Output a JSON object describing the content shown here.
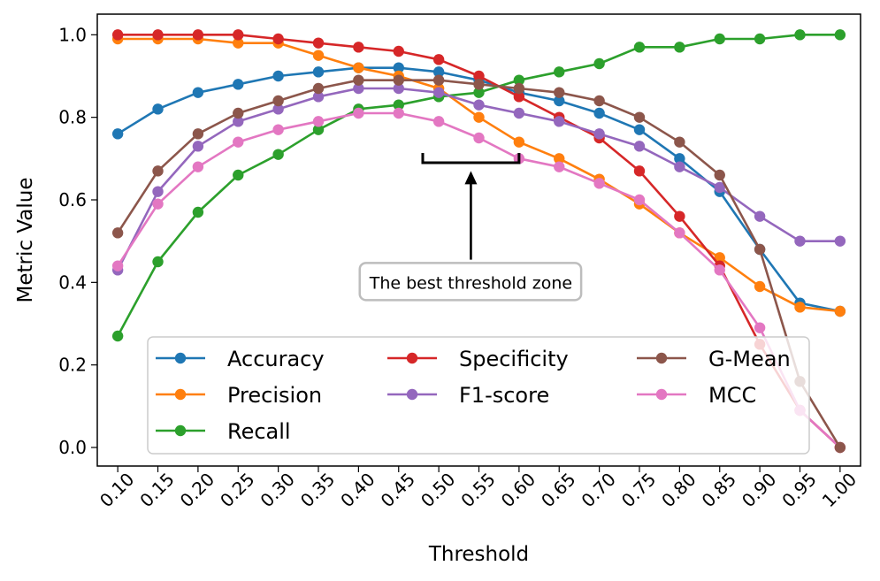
{
  "chart_data": {
    "type": "line",
    "title": "",
    "xlabel": "Threshold",
    "ylabel": "Metric Value",
    "xlim": [
      0.0745,
      1.0255
    ],
    "ylim": [
      -0.045,
      1.05
    ],
    "x_tick_labels": [
      "0.10",
      "0.15",
      "0.20",
      "0.25",
      "0.30",
      "0.35",
      "0.40",
      "0.45",
      "0.50",
      "0.55",
      "0.60",
      "0.65",
      "0.70",
      "0.75",
      "0.80",
      "0.85",
      "0.90",
      "0.95",
      "1.00"
    ],
    "y_tick_labels": [
      "0.0",
      "0.2",
      "0.4",
      "0.6",
      "0.8",
      "1.0"
    ],
    "x": [
      0.1,
      0.15,
      0.2,
      0.25,
      0.3,
      0.35,
      0.4,
      0.45,
      0.5,
      0.55,
      0.6,
      0.65,
      0.7,
      0.75,
      0.8,
      0.85,
      0.9,
      0.95,
      1.0
    ],
    "series": [
      {
        "name": "Accuracy",
        "color": "#1f77b4",
        "values": [
          0.76,
          0.82,
          0.86,
          0.88,
          0.9,
          0.91,
          0.92,
          0.92,
          0.91,
          0.89,
          0.86,
          0.84,
          0.81,
          0.77,
          0.7,
          0.62,
          0.48,
          0.35,
          0.33
        ]
      },
      {
        "name": "Precision",
        "color": "#ff7f0e",
        "values": [
          0.99,
          0.99,
          0.99,
          0.98,
          0.98,
          0.95,
          0.92,
          0.9,
          0.87,
          0.8,
          0.74,
          0.7,
          0.65,
          0.59,
          0.52,
          0.46,
          0.39,
          0.34,
          0.33
        ]
      },
      {
        "name": "Recall",
        "color": "#2ca02c",
        "values": [
          0.27,
          0.45,
          0.57,
          0.66,
          0.71,
          0.77,
          0.82,
          0.83,
          0.85,
          0.86,
          0.89,
          0.91,
          0.93,
          0.97,
          0.97,
          0.99,
          0.99,
          1.0,
          1.0
        ]
      },
      {
        "name": "Specificity",
        "color": "#d62728",
        "values": [
          1.0,
          1.0,
          1.0,
          1.0,
          0.99,
          0.98,
          0.97,
          0.96,
          0.94,
          0.9,
          0.85,
          0.8,
          0.75,
          0.67,
          0.56,
          0.44,
          0.25,
          0.09,
          0.0
        ]
      },
      {
        "name": "F1-score",
        "color": "#9467bd",
        "values": [
          0.43,
          0.62,
          0.73,
          0.79,
          0.82,
          0.85,
          0.87,
          0.87,
          0.86,
          0.83,
          0.81,
          0.79,
          0.76,
          0.73,
          0.68,
          0.63,
          0.56,
          0.5,
          0.5
        ]
      },
      {
        "name": "MCC",
        "color": "#e377c2",
        "values": [
          0.44,
          0.59,
          0.68,
          0.74,
          0.77,
          0.79,
          0.81,
          0.81,
          0.79,
          0.75,
          0.7,
          0.68,
          0.64,
          0.6,
          0.52,
          0.43,
          0.29,
          0.09,
          0.0
        ]
      },
      {
        "name": "G-Mean",
        "color": "#8c564b",
        "values": [
          0.52,
          0.67,
          0.76,
          0.81,
          0.84,
          0.87,
          0.89,
          0.89,
          0.89,
          0.88,
          0.87,
          0.86,
          0.84,
          0.8,
          0.74,
          0.66,
          0.48,
          0.16,
          0.0
        ]
      }
    ],
    "legend": {
      "placement": "lower-left",
      "columns": [
        [
          "Accuracy",
          "Precision",
          "Recall"
        ],
        [
          "Specificity",
          "F1-score"
        ],
        [
          "G-Mean",
          "MCC"
        ]
      ]
    },
    "annotation": {
      "text": "The best threshold zone",
      "bracket_x_range": [
        0.48,
        0.6
      ],
      "bracket_y": 0.69,
      "arrow_tip": [
        0.54,
        0.67
      ],
      "arrow_tail": [
        0.54,
        0.455
      ],
      "text_anchor": [
        0.54,
        0.4
      ]
    }
  }
}
